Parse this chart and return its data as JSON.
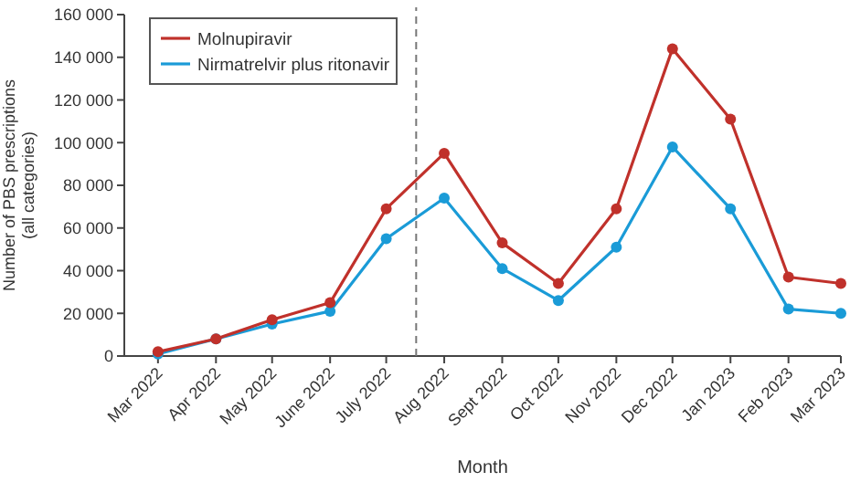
{
  "chart_data": {
    "type": "line",
    "xlabel": "Month",
    "ylabel": "Number of PBS prescriptions\n(all categories)",
    "x": [
      "2022-03",
      "2022-04",
      "2022-05",
      "2022-06",
      "2022-07",
      "2022-08",
      "2022-09",
      "2022-10",
      "2022-11",
      "2022-12",
      "2023-01",
      "2023-02",
      "2023-03"
    ],
    "series": [
      {
        "name": "Molnupiravir",
        "color": "#c0312b",
        "values": [
          2000,
          8000,
          17000,
          25000,
          69000,
          95000,
          53000,
          34000,
          69000,
          144000,
          111000,
          37000,
          34000
        ]
      },
      {
        "name": "Nirmatrelvir plus ritonavir",
        "color": "#1a9bd7",
        "values": [
          1000,
          8000,
          15000,
          21000,
          55000,
          74000,
          41000,
          26000,
          51000,
          98000,
          69000,
          22000,
          20000
        ]
      }
    ],
    "xlim": [
      "2022-02-11",
      "2023-03"
    ],
    "xticks": [
      {
        "value": "2022-03",
        "label": "Mar 2022"
      },
      {
        "value": "2022-04",
        "label": "Apr 2022"
      },
      {
        "value": "2022-05",
        "label": "May 2022"
      },
      {
        "value": "2022-06",
        "label": "June 2022"
      },
      {
        "value": "2022-07",
        "label": "July 2022"
      },
      {
        "value": "2022-08",
        "label": "Aug 2022"
      },
      {
        "value": "2022-09",
        "label": "Sept 2022"
      },
      {
        "value": "2022-10",
        "label": "Oct 2022"
      },
      {
        "value": "2022-11",
        "label": "Nov 2022"
      },
      {
        "value": "2022-12",
        "label": "Dec 2022"
      },
      {
        "value": "2023-01",
        "label": "Jan 2023"
      },
      {
        "value": "2023-02",
        "label": "Feb 2023"
      },
      {
        "value": "2023-03",
        "label": "Mar 2023"
      }
    ],
    "ylim": [
      0,
      160000
    ],
    "yticks": [
      0,
      {
        "value": 20000,
        "label": "20 000"
      },
      {
        "value": 40000,
        "label": "40 000"
      },
      {
        "value": 60000,
        "label": "60 000"
      },
      {
        "value": 80000,
        "label": "80 000"
      },
      {
        "value": 100000,
        "label": "100 000"
      },
      {
        "value": 120000,
        "label": "120 000"
      },
      {
        "value": 140000,
        "label": "140 000"
      },
      {
        "value": 160000,
        "label": "160 000"
      }
    ],
    "ref_lines": [
      {
        "axis": "x",
        "value": "2022-07-17",
        "color": "#777777",
        "line_style": "dashed"
      }
    ],
    "grid": false,
    "legend": "top left",
    "marker": "circle",
    "line_style": "solid"
  }
}
